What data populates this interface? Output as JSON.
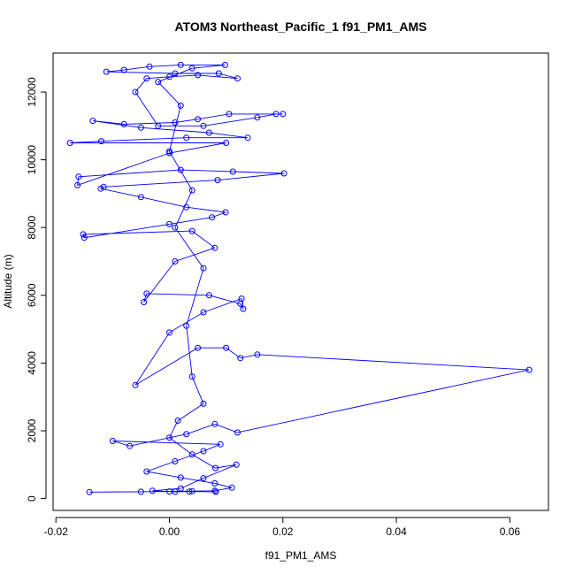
{
  "chart_data": {
    "type": "scatter",
    "title": "ATOM3 Northeast_Pacific_1 f91_PM1_AMS",
    "xlabel": "f91_PM1_AMS",
    "ylabel": "Altitude (m)",
    "xlim": [
      -0.0205,
      0.0668
    ],
    "ylim": [
      -350,
      13150
    ],
    "x_ticks": [
      -0.02,
      0.0,
      0.02,
      0.04,
      0.06
    ],
    "x_tick_labels": [
      "-0.02",
      "0.00",
      "0.02",
      "0.04",
      "0.06"
    ],
    "y_ticks": [
      0,
      2000,
      4000,
      6000,
      8000,
      10000,
      12000
    ],
    "y_tick_labels": [
      "0",
      "2000",
      "4000",
      "6000",
      "8000",
      "10000",
      "12000"
    ],
    "grid": false,
    "legend": "none",
    "marker": "open-circle",
    "connected": true,
    "series": [
      {
        "color": "#0000ff",
        "points": [
          [
            -0.0141,
            190
          ],
          [
            -0.005,
            200
          ],
          [
            0.0,
            210
          ],
          [
            0.004,
            220
          ],
          [
            0.008,
            230
          ],
          [
            0.011,
            320
          ],
          [
            0.008,
            450
          ],
          [
            0.002,
            620
          ],
          [
            -0.004,
            800
          ],
          [
            0.001,
            1100
          ],
          [
            0.006,
            1400
          ],
          [
            0.009,
            1600
          ],
          [
            -0.01,
            1700
          ],
          [
            -0.007,
            1550
          ],
          [
            0.003,
            1900
          ],
          [
            0.008,
            2200
          ],
          [
            0.012,
            1950
          ],
          [
            0.0634,
            3800
          ],
          [
            0.0155,
            4250
          ],
          [
            0.0125,
            4150
          ],
          [
            0.01,
            4450
          ],
          [
            0.005,
            4450
          ],
          [
            -0.006,
            3350
          ],
          [
            0.0,
            4900
          ],
          [
            0.006,
            5500
          ],
          [
            0.0127,
            5900
          ],
          [
            0.013,
            5600
          ],
          [
            0.0125,
            5750
          ],
          [
            0.007,
            6000
          ],
          [
            -0.004,
            6050
          ],
          [
            -0.0045,
            5800
          ],
          [
            0.001,
            7000
          ],
          [
            0.008,
            7400
          ],
          [
            0.004,
            7900
          ],
          [
            -0.0152,
            7800
          ],
          [
            -0.015,
            7700
          ],
          [
            0.0,
            8100
          ],
          [
            0.0075,
            8300
          ],
          [
            0.0099,
            8450
          ],
          [
            0.003,
            8600
          ],
          [
            -0.005,
            8900
          ],
          [
            -0.0121,
            9150
          ],
          [
            -0.0116,
            9200
          ],
          [
            0.0085,
            9400
          ],
          [
            0.0202,
            9600
          ],
          [
            0.0112,
            9650
          ],
          [
            0.002,
            9700
          ],
          [
            -0.016,
            9500
          ],
          [
            -0.0162,
            9250
          ],
          [
            0.0,
            10200
          ],
          [
            0.01,
            10500
          ],
          [
            -0.0175,
            10500
          ],
          [
            -0.012,
            10550
          ],
          [
            0.003,
            10650
          ],
          [
            0.0138,
            10650
          ],
          [
            0.007,
            10800
          ],
          [
            -0.005,
            10950
          ],
          [
            -0.0135,
            11150
          ],
          [
            -0.008,
            11050
          ],
          [
            0.001,
            11100
          ],
          [
            0.005,
            11200
          ],
          [
            0.0105,
            11350
          ],
          [
            0.02,
            11350
          ],
          [
            0.0188,
            11350
          ],
          [
            0.0155,
            11250
          ],
          [
            0.006,
            11000
          ],
          [
            -0.002,
            11000
          ],
          [
            -0.006,
            12000
          ],
          [
            -0.004,
            12400
          ],
          [
            0.0,
            12450
          ],
          [
            0.005,
            12500
          ],
          [
            0.012,
            12400
          ],
          [
            0.0087,
            12550
          ],
          [
            0.001,
            12550
          ],
          [
            -0.0111,
            12600
          ],
          [
            -0.008,
            12650
          ],
          [
            -0.0035,
            12750
          ],
          [
            0.002,
            12800
          ],
          [
            0.0098,
            12800
          ],
          [
            0.004,
            12700
          ],
          [
            -0.002,
            12300
          ],
          [
            0.002,
            11600
          ],
          [
            0.0,
            10250
          ],
          [
            0.004,
            9100
          ],
          [
            0.001,
            8000
          ],
          [
            0.006,
            6800
          ],
          [
            0.003,
            5100
          ],
          [
            0.004,
            3600
          ],
          [
            0.006,
            2800
          ],
          [
            0.0015,
            2300
          ],
          [
            0.0,
            1800
          ],
          [
            0.004,
            1300
          ],
          [
            0.0081,
            900
          ],
          [
            0.0118,
            1000
          ],
          [
            0.006,
            600
          ],
          [
            0.002,
            300
          ],
          [
            -0.003,
            230
          ],
          [
            0.001,
            200
          ],
          [
            0.0035,
            205
          ],
          [
            0.0082,
            200
          ]
        ]
      }
    ]
  }
}
